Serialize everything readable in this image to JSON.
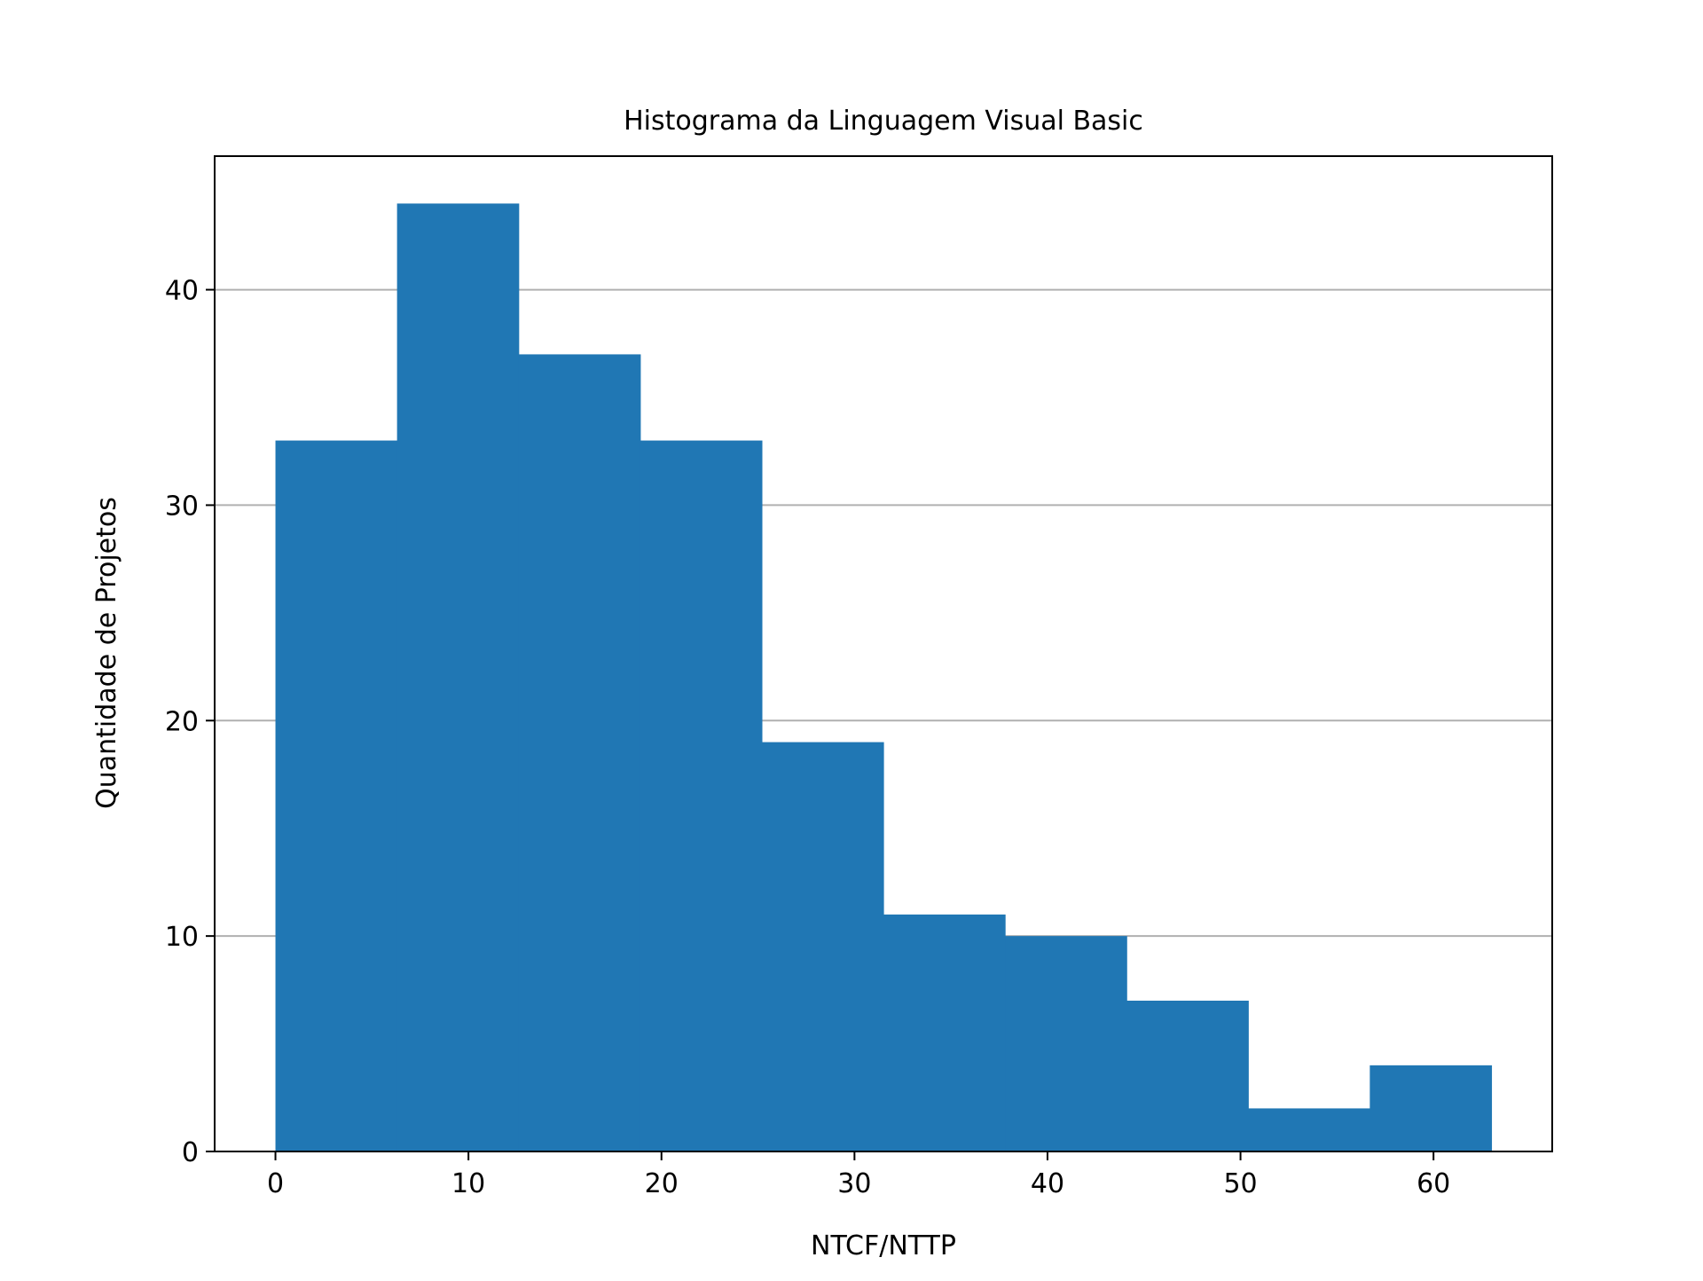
{
  "chart_data": {
    "type": "bar",
    "subtype": "histogram",
    "title": "Histograma da Linguagem Visual Basic",
    "xlabel": "NTCF/NTTP",
    "ylabel": "Quantidade de Projetos",
    "bin_edges": [
      0.0,
      6.3,
      12.6,
      18.9,
      25.2,
      31.5,
      37.8,
      44.1,
      50.4,
      56.7,
      63.0
    ],
    "values": [
      33,
      44,
      37,
      33,
      19,
      11,
      10,
      7,
      2,
      4
    ],
    "xlim": [
      -3.15,
      66.15
    ],
    "ylim": [
      0,
      46.2
    ],
    "x_ticks": [
      0,
      10,
      20,
      30,
      40,
      50,
      60
    ],
    "y_ticks": [
      0,
      10,
      20,
      30,
      40
    ],
    "grid": "horizontal",
    "legend": "none",
    "colors": {
      "bar": "#2077b4",
      "grid": "#b0b0b0",
      "axes": "#000000",
      "background": "#ffffff"
    }
  }
}
